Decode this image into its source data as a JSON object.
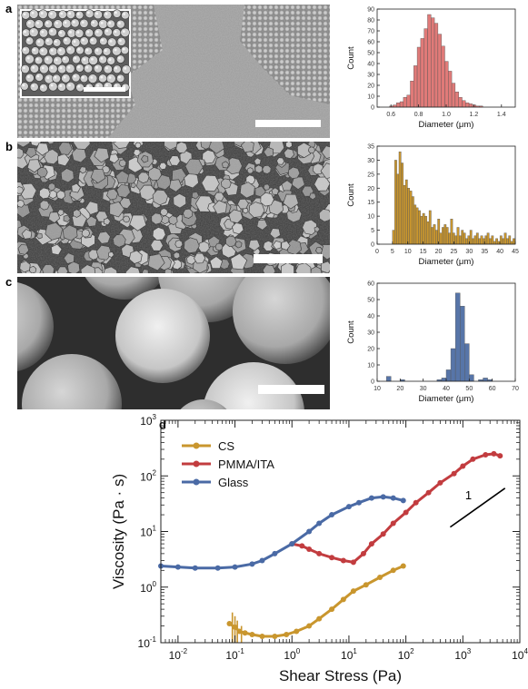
{
  "panels": {
    "a": {
      "label": "a"
    },
    "b": {
      "label": "b"
    },
    "c": {
      "label": "c"
    },
    "d": {
      "label": "d"
    }
  },
  "chart_data": [
    {
      "id": "hist-a",
      "type": "bar",
      "xlabel": "Diameter (μm)",
      "ylabel": "Count",
      "xlim": [
        0.5,
        1.5
      ],
      "ylim": [
        0,
        90
      ],
      "xticks": [
        "0.6",
        "0.8",
        "1.0",
        "1.2",
        "1.4"
      ],
      "yticks": [
        "0",
        "10",
        "20",
        "30",
        "40",
        "50",
        "60",
        "70",
        "80",
        "90"
      ],
      "bin_start": 0.59,
      "bin_width": 0.025,
      "values": [
        1,
        2,
        4,
        5,
        9,
        11,
        24,
        38,
        55,
        63,
        72,
        85,
        82,
        77,
        67,
        56,
        42,
        33,
        22,
        14,
        9,
        6,
        4,
        3,
        2,
        1,
        1
      ],
      "color": "#e07a78"
    },
    {
      "id": "hist-b",
      "type": "bar",
      "xlabel": "Diameter (μm)",
      "ylabel": "Count",
      "xlim": [
        0,
        45
      ],
      "ylim": [
        0,
        35
      ],
      "xticks": [
        "0",
        "5",
        "10",
        "15",
        "20",
        "25",
        "30",
        "35",
        "40",
        "45"
      ],
      "yticks": [
        "0",
        "5",
        "10",
        "15",
        "20",
        "25",
        "30",
        "35"
      ],
      "bin_start": 5,
      "bin_width": 0.7,
      "values": [
        5,
        30,
        25,
        33,
        29,
        21,
        23,
        20,
        19,
        17,
        14,
        13,
        12,
        10,
        11,
        10,
        8,
        12,
        6,
        7,
        5,
        9,
        4,
        6,
        7,
        6,
        4,
        9,
        4,
        3,
        6,
        3,
        5,
        4,
        2,
        3,
        5,
        2,
        3,
        4,
        2,
        3,
        2,
        3,
        4,
        2,
        3,
        1,
        2,
        1,
        3,
        2,
        4,
        2,
        3,
        1,
        2,
        3,
        2,
        1,
        2,
        5,
        3,
        2,
        3,
        5,
        4,
        3
      ],
      "color": "#c9962e"
    },
    {
      "id": "hist-c",
      "type": "bar",
      "xlabel": "Diameter (μm)",
      "ylabel": "Count",
      "xlim": [
        10,
        70
      ],
      "ylim": [
        0,
        60
      ],
      "xticks": [
        "10",
        "20",
        "30",
        "40",
        "50",
        "60",
        "70"
      ],
      "yticks": [
        "0",
        "10",
        "20",
        "30",
        "40",
        "50",
        "60"
      ],
      "bin_start": 10,
      "bin_width": 2,
      "values": [
        0,
        0,
        3,
        0,
        0,
        1,
        0,
        0,
        0,
        0,
        0,
        0,
        0,
        1,
        2,
        7,
        20,
        54,
        46,
        23,
        4,
        0,
        1,
        2,
        1,
        0,
        0,
        0,
        0,
        0
      ],
      "color": "#5775a8"
    },
    {
      "id": "rheology",
      "type": "scatter",
      "xlabel": "Shear Stress (Pa)",
      "ylabel": "Viscosity (Pa · s)",
      "xscale": "log",
      "yscale": "log",
      "xlim": [
        0.005,
        10000
      ],
      "ylim": [
        0.1,
        1000
      ],
      "legend": "top-left",
      "annotation": "1",
      "series": [
        {
          "name": "CS",
          "color": "#c9962e",
          "x": [
            0.08,
            0.1,
            0.12,
            0.15,
            0.2,
            0.3,
            0.5,
            0.8,
            1.2,
            2,
            3,
            5,
            8,
            12,
            20,
            35,
            60,
            90
          ],
          "y": [
            0.22,
            0.19,
            0.16,
            0.15,
            0.14,
            0.13,
            0.13,
            0.14,
            0.16,
            0.2,
            0.27,
            0.4,
            0.6,
            0.85,
            1.1,
            1.5,
            2,
            2.4
          ]
        },
        {
          "name": "PMMA/ITA",
          "color": "#c23c3f",
          "x": [
            1,
            1.5,
            2,
            3,
            5,
            8,
            12,
            18,
            25,
            40,
            60,
            100,
            150,
            250,
            400,
            700,
            1000,
            1500,
            2500,
            3500,
            4500
          ],
          "y": [
            6,
            5.5,
            4.8,
            4,
            3.4,
            3,
            2.8,
            4,
            6,
            9,
            14,
            22,
            33,
            50,
            75,
            110,
            150,
            200,
            240,
            250,
            230
          ]
        },
        {
          "name": "Glass",
          "color": "#4a6aa5",
          "x": [
            0.005,
            0.01,
            0.02,
            0.05,
            0.1,
            0.2,
            0.3,
            0.5,
            1,
            2,
            3,
            5,
            10,
            15,
            25,
            40,
            60,
            90
          ],
          "y": [
            2.4,
            2.3,
            2.2,
            2.2,
            2.3,
            2.6,
            3,
            4,
            6,
            10,
            14,
            20,
            28,
            33,
            40,
            42,
            40,
            36
          ]
        }
      ]
    }
  ]
}
